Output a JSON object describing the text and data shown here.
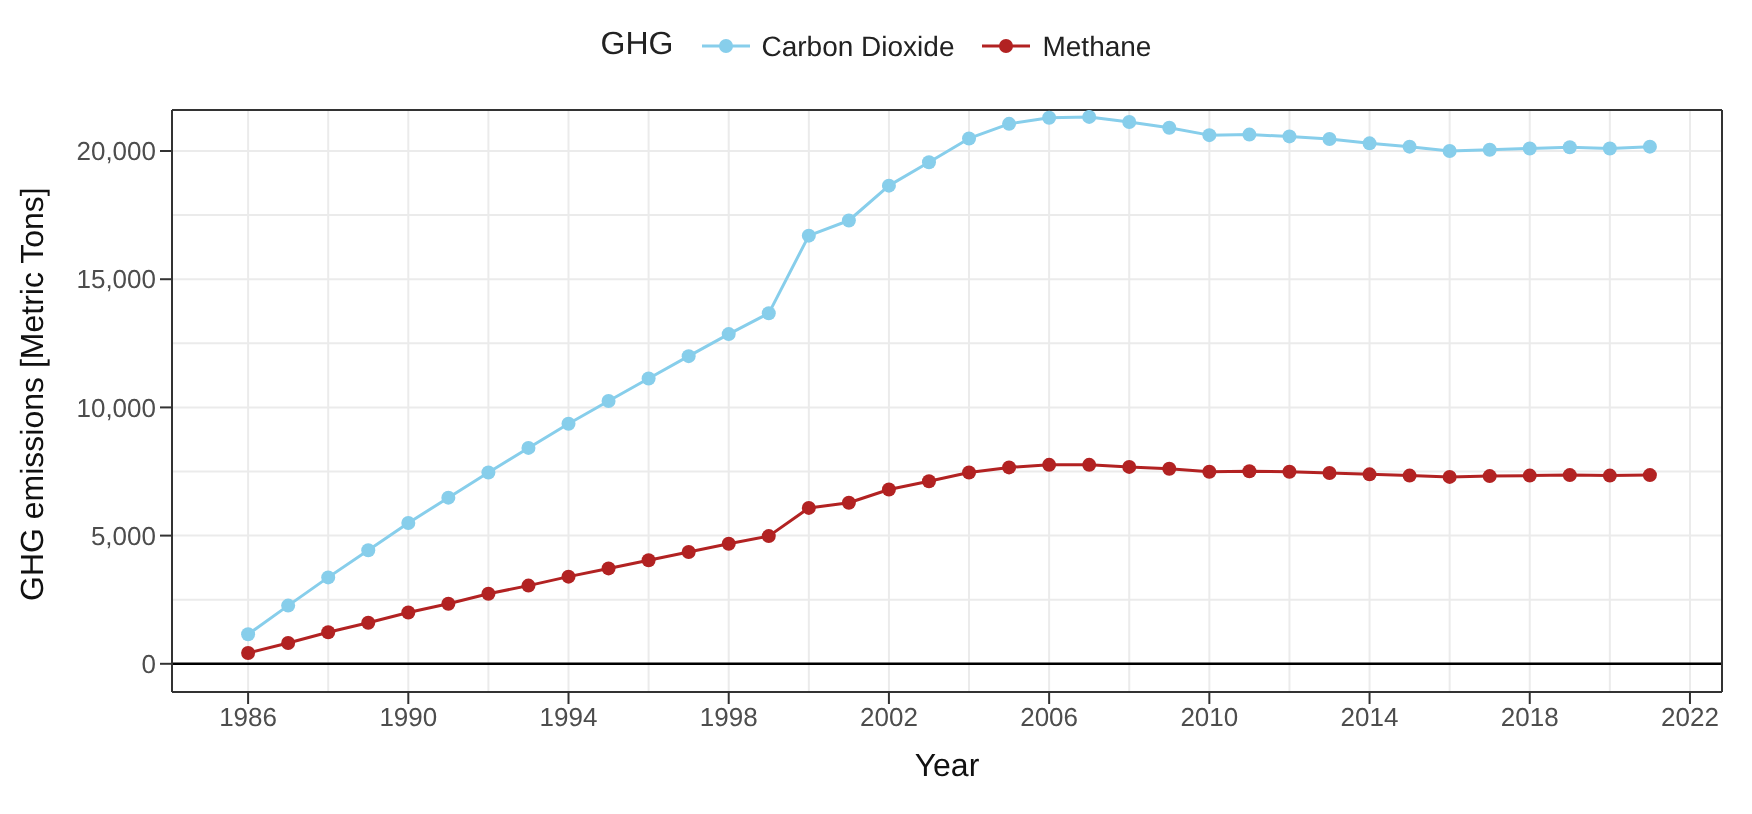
{
  "chart_data": {
    "type": "line",
    "xlabel": "Year",
    "ylabel": "GHG emissions [Metric Tons]",
    "legend_title": "GHG",
    "legend": "top",
    "x": [
      1986,
      1987,
      1988,
      1989,
      1990,
      1991,
      1992,
      1993,
      1994,
      1995,
      1996,
      1997,
      1998,
      1999,
      2000,
      2001,
      2002,
      2003,
      2004,
      2005,
      2006,
      2007,
      2008,
      2009,
      2010,
      2011,
      2012,
      2013,
      2014,
      2015,
      2016,
      2017,
      2018,
      2019,
      2020,
      2021
    ],
    "series": [
      {
        "name": "Carbon Dioxide",
        "color": "#87ceeb",
        "values": [
          1150,
          2270,
          3370,
          4430,
          5490,
          6480,
          7460,
          8420,
          9360,
          10250,
          11130,
          12000,
          12860,
          13670,
          16700,
          17290,
          18650,
          19560,
          20490,
          21060,
          21300,
          21330,
          21130,
          20910,
          20620,
          20640,
          20570,
          20470,
          20300,
          20170,
          20000,
          20050,
          20100,
          20150,
          20100,
          20170
        ]
      },
      {
        "name": "Methane",
        "color": "#b22222",
        "values": [
          420,
          810,
          1230,
          1600,
          2000,
          2340,
          2730,
          3050,
          3400,
          3720,
          4040,
          4360,
          4680,
          4980,
          6080,
          6280,
          6800,
          7120,
          7460,
          7660,
          7760,
          7760,
          7680,
          7610,
          7490,
          7510,
          7490,
          7440,
          7390,
          7340,
          7290,
          7320,
          7340,
          7360,
          7340,
          7360
        ]
      }
    ],
    "xlim": [
      1984.1,
      2022.8
    ],
    "xticks": [
      1986,
      1990,
      1994,
      1998,
      2002,
      2006,
      2010,
      2014,
      2018,
      2022
    ],
    "ylim": [
      -1100,
      21600
    ],
    "yticks": [
      0,
      {
        "value": 5000,
        "label": "5,000"
      },
      {
        "value": 10000,
        "label": "10,000"
      },
      {
        "value": 15000,
        "label": "15,000"
      },
      {
        "value": 20000,
        "label": "20,000"
      }
    ],
    "ref_lines": [
      {
        "axis": "y",
        "value": 0,
        "color": "#000000"
      }
    ],
    "grid": true,
    "marker": "circle",
    "line_style": "solid"
  }
}
